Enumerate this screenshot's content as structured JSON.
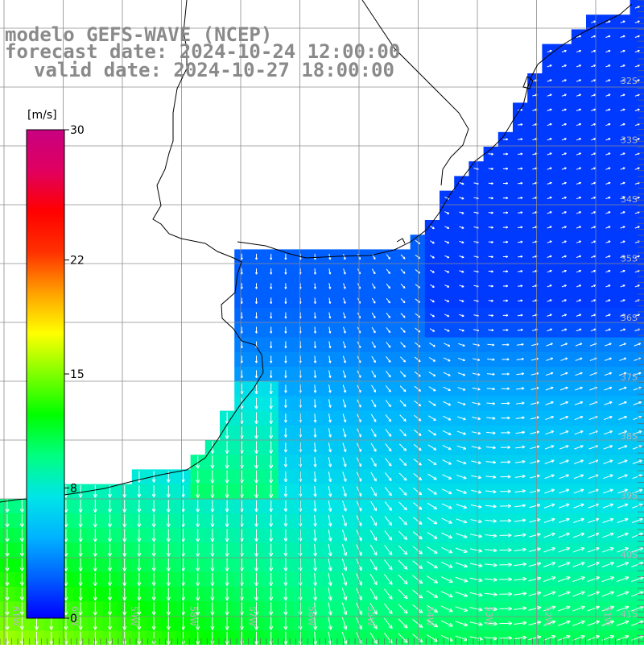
{
  "title": {
    "line1": "modelo GEFS-WAVE (NCEP)",
    "line2": "forecast date: 2024-10-24 12:00:00",
    "line3": "valid date: 2024-10-27 18:00:00"
  },
  "colorbar": {
    "unit": "[m/s]",
    "ticks": [
      "30",
      "22",
      "15",
      "8",
      "0"
    ],
    "tick_values": [
      30,
      22,
      15,
      8,
      0
    ],
    "range": [
      0,
      30
    ],
    "colors": [
      "#0000ff",
      "#0060ff",
      "#00b4ff",
      "#00e6e6",
      "#00ff80",
      "#00ff00",
      "#80ff00",
      "#ffff00",
      "#ffa000",
      "#ff3000",
      "#ff0000",
      "#e00060",
      "#c80080"
    ]
  },
  "axes": {
    "lat_labels": [
      "32S",
      "33S",
      "34S",
      "35S",
      "36S",
      "37S",
      "38S",
      "39S",
      "40S",
      "41S"
    ],
    "lon_labels": [
      "61W",
      "60W",
      "59W",
      "58W",
      "57W",
      "56W",
      "55W",
      "54W",
      "53W",
      "52W",
      "51W",
      "50W"
    ]
  },
  "colors": {
    "land": "#ffffff",
    "grid": "#8c8c8c",
    "coast": "#000000",
    "arrow": "#ffffff",
    "title": "#8a8a8a"
  }
}
